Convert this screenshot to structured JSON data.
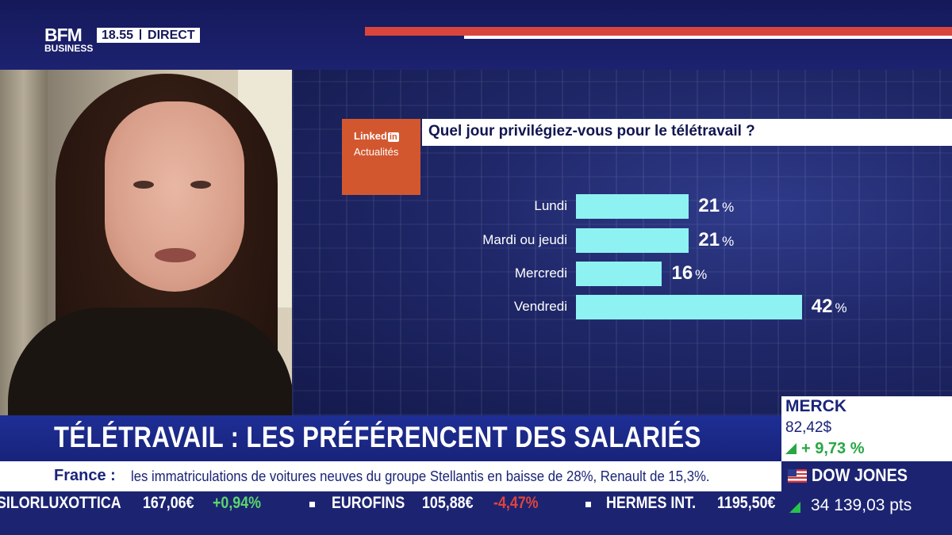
{
  "channel": {
    "logo_top": "BFM",
    "logo_bottom": "BUSINESS",
    "time": "18.55",
    "live": "DIRECT"
  },
  "linkedin": {
    "brand": "Linked",
    "brand_in": "in",
    "sub": "Actualités",
    "color": "#d2572f"
  },
  "question": "Quel jour privilégiez-vous pour le télétravail ?",
  "chart_data": {
    "type": "bar",
    "orientation": "horizontal",
    "categories": [
      "Lundi",
      "Mardi ou jeudi",
      "Mercredi",
      "Vendredi"
    ],
    "values": [
      21,
      21,
      16,
      42
    ],
    "unit": "%",
    "bar_color": "#8ef2f2"
  },
  "headline": "TÉLÉTRAVAIL : LES PRÉFÉRENCENT DES SALARIÉS",
  "news": {
    "lead": "France :",
    "text": "les immatriculations de voitures neuves du groupe Stellantis en baisse de 28%, Renault de 15,3%."
  },
  "ticker": [
    {
      "name": "SILORLUXOTTICA",
      "price": "167,06€",
      "change": "+0,94%",
      "dir": "up"
    },
    {
      "name": "EUROFINS",
      "price": "105,88€",
      "change": "-4,47%",
      "dir": "down"
    },
    {
      "name": "HERMES INT.",
      "price": "1195,50€",
      "change": "",
      "dir": ""
    }
  ],
  "stock_merck": {
    "name": "MERCK",
    "price": "82,42$",
    "change": "+ 9,73 %"
  },
  "stock_dow": {
    "name": "DOW JONES",
    "value": "34 139,03 pts"
  }
}
